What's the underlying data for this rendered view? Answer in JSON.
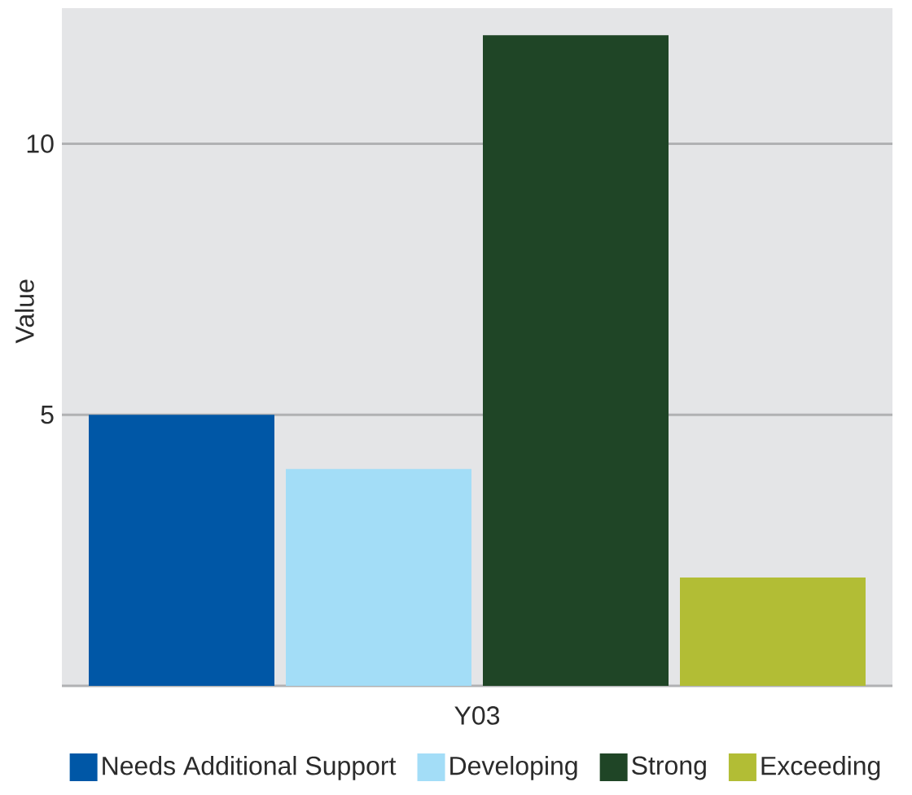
{
  "chart_data": {
    "type": "bar",
    "categories": [
      "Y03"
    ],
    "ylabel": "Value",
    "series": [
      {
        "name": "Needs Additional Support",
        "color": "#0057a6",
        "values": [
          5
        ]
      },
      {
        "name": "Developing",
        "color": "#a3ddf7",
        "values": [
          4
        ]
      },
      {
        "name": "Strong",
        "color": "#1f4526",
        "values": [
          12
        ]
      },
      {
        "name": "Exceeding",
        "color": "#b2bd35",
        "values": [
          2
        ]
      }
    ],
    "ylim": [
      0,
      12.5
    ],
    "yticks": [
      5,
      10
    ],
    "grid": "y",
    "legend": "bottom"
  }
}
